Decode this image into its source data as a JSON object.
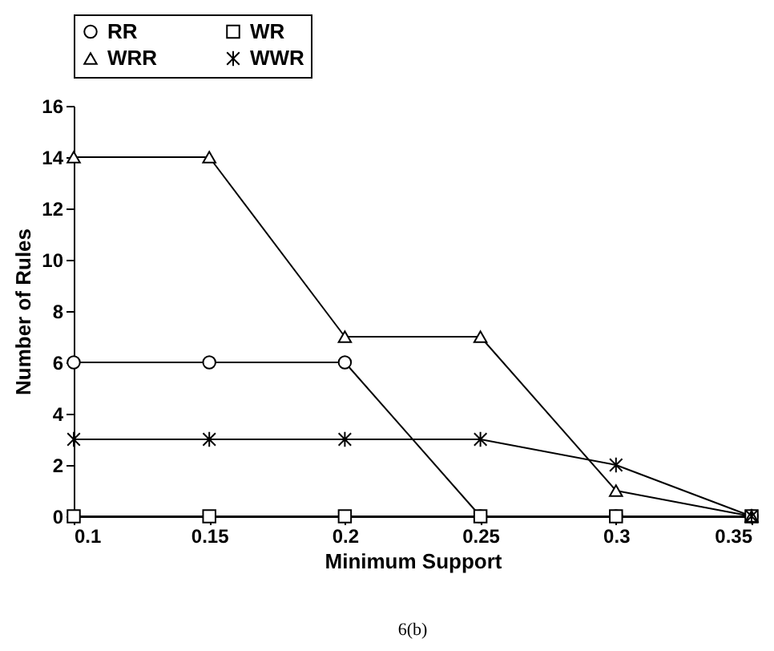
{
  "chart_data": {
    "type": "line",
    "xlabel": "Minimum Support",
    "ylabel": "Number of Rules",
    "x": [
      0.1,
      0.15,
      0.2,
      0.25,
      0.3,
      0.35
    ],
    "series": [
      {
        "name": "RR",
        "color": "#000000",
        "marker": "circle",
        "values": [
          6,
          6,
          6,
          0,
          0,
          0
        ]
      },
      {
        "name": "WR",
        "color": "#000000",
        "marker": "square",
        "values": [
          0,
          0,
          0,
          0,
          0,
          0
        ]
      },
      {
        "name": "WRR",
        "color": "#000000",
        "marker": "triangle",
        "values": [
          14,
          14,
          7,
          7,
          1,
          0
        ]
      },
      {
        "name": "WWR",
        "color": "#000000",
        "marker": "cross",
        "values": [
          3,
          3,
          3,
          3,
          2,
          0
        ]
      }
    ],
    "xlim": [
      0.1,
      0.35
    ],
    "xticks": [
      0.1,
      0.15,
      0.2,
      0.25,
      0.3,
      0.35
    ],
    "ylim": [
      0,
      16
    ],
    "yticks": [
      0,
      2,
      4,
      6,
      8,
      10,
      12,
      14,
      16
    ],
    "grid": false,
    "legend": "top",
    "line_style": "solid",
    "annotations": [
      "6(b)"
    ]
  }
}
